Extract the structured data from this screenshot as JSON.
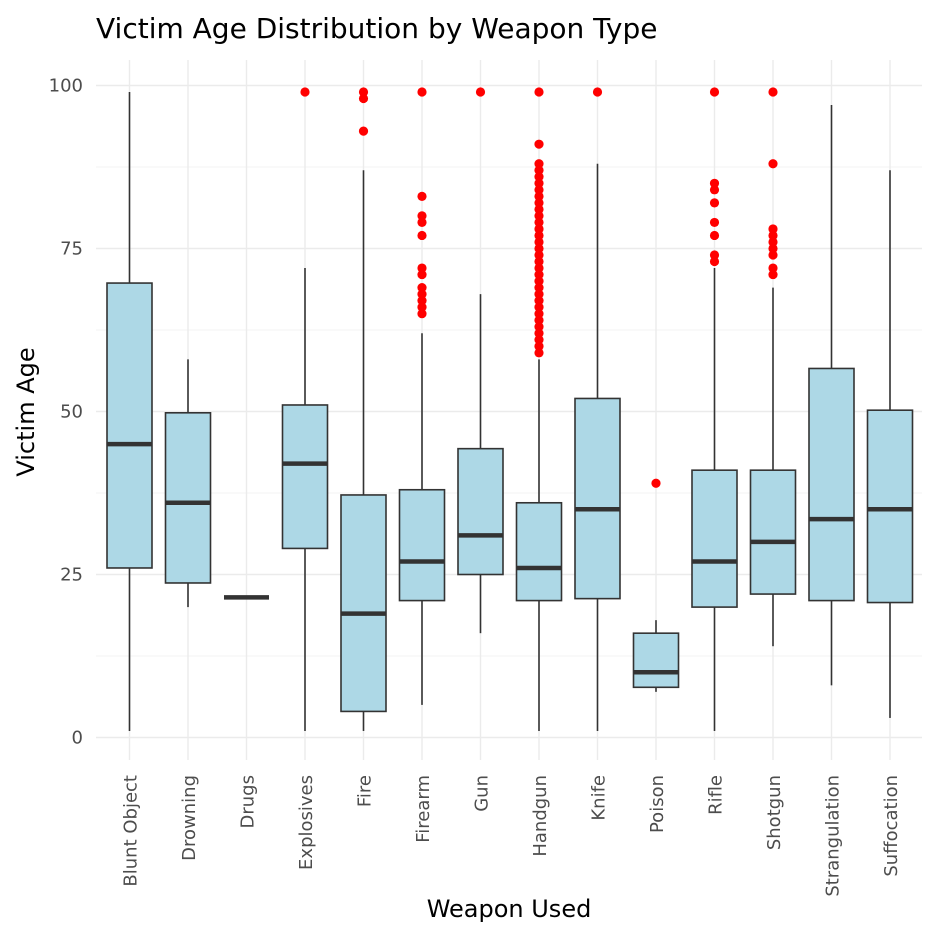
{
  "chart_data": {
    "type": "box",
    "title": "Victim Age Distribution by Weapon Type",
    "xlabel": "Weapon Used",
    "ylabel": "Victim Age",
    "ylim": [
      -3.5,
      104
    ],
    "yticks": [
      0,
      25,
      50,
      75,
      100
    ],
    "grid": true,
    "colors": {
      "box_fill": "#add8e6",
      "box_line": "#333333",
      "outlier": "#ff0000"
    },
    "categories": [
      "Blunt Object",
      "Drowning",
      "Drugs",
      "Explosives",
      "Fire",
      "Firearm",
      "Gun",
      "Handgun",
      "Knife",
      "Poison",
      "Rifle",
      "Shotgun",
      "Strangulation",
      "Suffocation"
    ],
    "boxes": [
      {
        "min": 1,
        "q1": 26,
        "median": 45,
        "q3": 69.7,
        "max": 99,
        "outliers": []
      },
      {
        "min": 20,
        "q1": 23.7,
        "median": 36,
        "q3": 49.8,
        "max": 58,
        "outliers": []
      },
      {
        "min": 21.5,
        "q1": 21.5,
        "median": 21.5,
        "q3": 21.5,
        "max": 21.5,
        "outliers": []
      },
      {
        "min": 1,
        "q1": 29,
        "median": 42,
        "q3": 51,
        "max": 72,
        "outliers": [
          99
        ]
      },
      {
        "min": 1,
        "q1": 4,
        "median": 19,
        "q3": 37.2,
        "max": 87,
        "outliers": [
          93,
          98,
          99
        ]
      },
      {
        "min": 5,
        "q1": 21,
        "median": 27,
        "q3": 38,
        "max": 62,
        "outliers": [
          65,
          66,
          67,
          68,
          69,
          71,
          72,
          77,
          79,
          80,
          83,
          99
        ]
      },
      {
        "min": 16,
        "q1": 25,
        "median": 31,
        "q3": 44.3,
        "max": 68,
        "outliers": [
          99
        ]
      },
      {
        "min": 1,
        "q1": 21,
        "median": 26,
        "q3": 36,
        "max": 58,
        "outliers": [
          59,
          60,
          61,
          62,
          63,
          64,
          65,
          66,
          67,
          68,
          69,
          70,
          71,
          72,
          73,
          74,
          75,
          76,
          77,
          78,
          79,
          80,
          81,
          82,
          83,
          84,
          85,
          86,
          87,
          88,
          91,
          99
        ]
      },
      {
        "min": 1,
        "q1": 21.3,
        "median": 35,
        "q3": 52,
        "max": 88,
        "outliers": [
          99
        ]
      },
      {
        "min": 7,
        "q1": 7.7,
        "median": 10,
        "q3": 16,
        "max": 18,
        "outliers": [
          39
        ]
      },
      {
        "min": 1,
        "q1": 20,
        "median": 27,
        "q3": 41,
        "max": 72,
        "outliers": [
          73,
          74,
          77,
          79,
          82,
          84,
          85,
          99
        ]
      },
      {
        "min": 14,
        "q1": 22,
        "median": 30,
        "q3": 41,
        "max": 69,
        "outliers": [
          71,
          72,
          74,
          75,
          76,
          77,
          78,
          88,
          99
        ]
      },
      {
        "min": 8,
        "q1": 21,
        "median": 33.5,
        "q3": 56.6,
        "max": 97,
        "outliers": []
      },
      {
        "min": 3,
        "q1": 20.7,
        "median": 35,
        "q3": 50.2,
        "max": 87,
        "outliers": []
      }
    ]
  }
}
